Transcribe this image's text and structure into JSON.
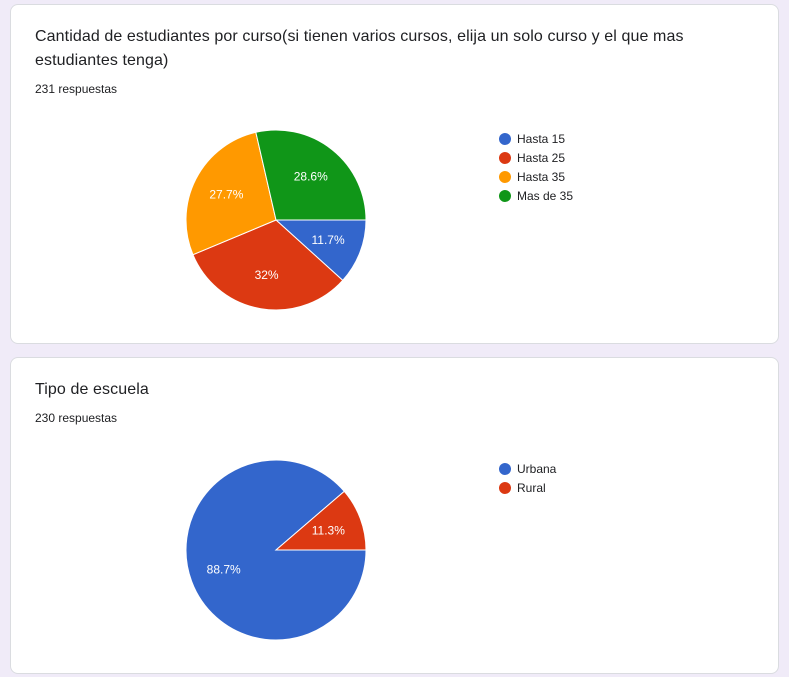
{
  "colors": {
    "blue": "#3366cc",
    "red": "#dc3912",
    "orange": "#ff9900",
    "green": "#109618"
  },
  "chart_data": [
    {
      "type": "pie",
      "title": "Cantidad de estudiantes por curso(si tienen varios cursos, elija un solo curso y el que mas estudiantes tenga)",
      "responses": "231 respuestas",
      "legend_position": "right",
      "slices": [
        {
          "label": "Hasta 15",
          "value": 11.7,
          "text": "11.7%",
          "color": "#3366cc"
        },
        {
          "label": "Hasta 25",
          "value": 32,
          "text": "32%",
          "color": "#dc3912"
        },
        {
          "label": "Hasta 35",
          "value": 27.7,
          "text": "27.7%",
          "color": "#ff9900"
        },
        {
          "label": "Mas de 35",
          "value": 28.6,
          "text": "28.6%",
          "color": "#109618"
        }
      ]
    },
    {
      "type": "pie",
      "title": "Tipo de escuela",
      "responses": "230 respuestas",
      "legend_position": "right",
      "slices": [
        {
          "label": "Urbana",
          "value": 88.7,
          "text": "88.7%",
          "color": "#3366cc"
        },
        {
          "label": "Rural",
          "value": 11.3,
          "text": "11.3%",
          "color": "#dc3912"
        }
      ]
    }
  ]
}
